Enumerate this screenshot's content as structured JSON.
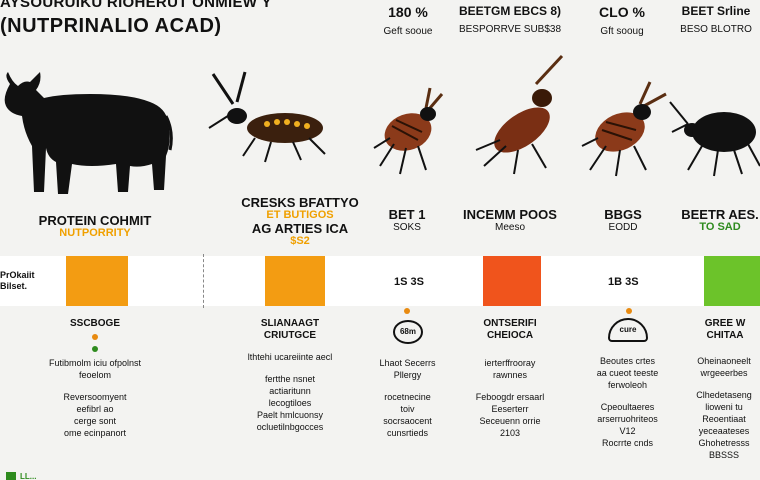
{
  "title": {
    "line1": "AYSOURUIKU RIOHERUT ONMIEW Y",
    "line2": "(NUTPRINALIO ACAD)"
  },
  "top_stats": [
    {
      "value": "180 %",
      "sub": "Geft sooue"
    },
    {
      "label": "BEETGM EBCS 8)",
      "sub": "BESPORRVE SUB$38"
    },
    {
      "value": "CLO %",
      "sub": "Gft sooug"
    },
    {
      "label": "BEET Srline",
      "sub": "BESO BLOTRO"
    }
  ],
  "columns": [
    {
      "head": "PROTEIN COHMIT",
      "accent": "NUTPORRITY",
      "side": [
        "PrOkaiit",
        "Bilset."
      ],
      "section": "SSCBOGE",
      "dot_color": "#e88a10",
      "details": [
        "Futibmolm iciu ofpolnst",
        "feoelom",
        "Reversoomyent",
        "eefibrl ao",
        "cerge sont",
        "ome ecinpanort"
      ]
    },
    {
      "head": "CRESKS BFATTYO",
      "accent": "ET BUTIGOS",
      "sub": "AG ARTIES ICA",
      "value": "$S2",
      "section": "SLIANAAGT CRIUTGCE",
      "dot_color": "#2e8b1e",
      "details": [
        "lthtehi ucareiinte aecl",
        "",
        "fertthe nsnet",
        "actiaritunn",
        "lecogtiloes",
        "Paelt hmlcuonsy",
        "ocluetilnbgocces"
      ]
    },
    {
      "head": "BET 1",
      "sub": "SOKS",
      "value": "1S 3S",
      "section": "",
      "icon": "68m",
      "dot_color": "#e88a10",
      "details": [
        "Lhaot Secerrs",
        "Pllergy",
        "",
        "rocetnecine",
        "toiv",
        "socrsaocent",
        "cunsrtieds"
      ]
    },
    {
      "head": "INCEMM POOS",
      "sub": "Meeso",
      "section": "ONTSERIFI CHEIOCA",
      "details": [
        "ierterffrooray",
        "rawnnes",
        "",
        "Feboogdr ersaarl",
        "Eeserterr",
        "Seceuenn orrie",
        "2103"
      ]
    },
    {
      "head": "BBGS",
      "sub": "EODD",
      "value": "1B 3S",
      "section": "",
      "icon": "cure",
      "dot_color": "#e88a10",
      "details": [
        "Beoutes crtes",
        "aa cueot teeste",
        "ferwoleoh",
        "",
        "Cpeoultaeres",
        "arserruohriteos",
        "V12",
        "Rocrrte cnds"
      ]
    },
    {
      "head": "BEETR AES.",
      "green": "TO SAD",
      "section": "GREE W CHITAA",
      "details": [
        "Oheinaoneelt",
        "wrgeeerbes",
        "",
        "Clhedetaseng",
        "lioweni tu",
        "",
        "Reoentiaat",
        "yeceaateses",
        "Ghohetresss",
        "BBSSS"
      ]
    }
  ],
  "bars": [
    {
      "color": "#f39c12",
      "value": ""
    },
    {
      "color": "#f39c12",
      "value": ""
    },
    {
      "color": "#ffffff",
      "value": "1S 3S"
    },
    {
      "color": "#f0541c",
      "value": ""
    },
    {
      "color": "#ffffff",
      "value": "1B 3S"
    },
    {
      "color": "#6cc32a",
      "value": ""
    }
  ],
  "footer": {
    "mark": "LL..."
  }
}
